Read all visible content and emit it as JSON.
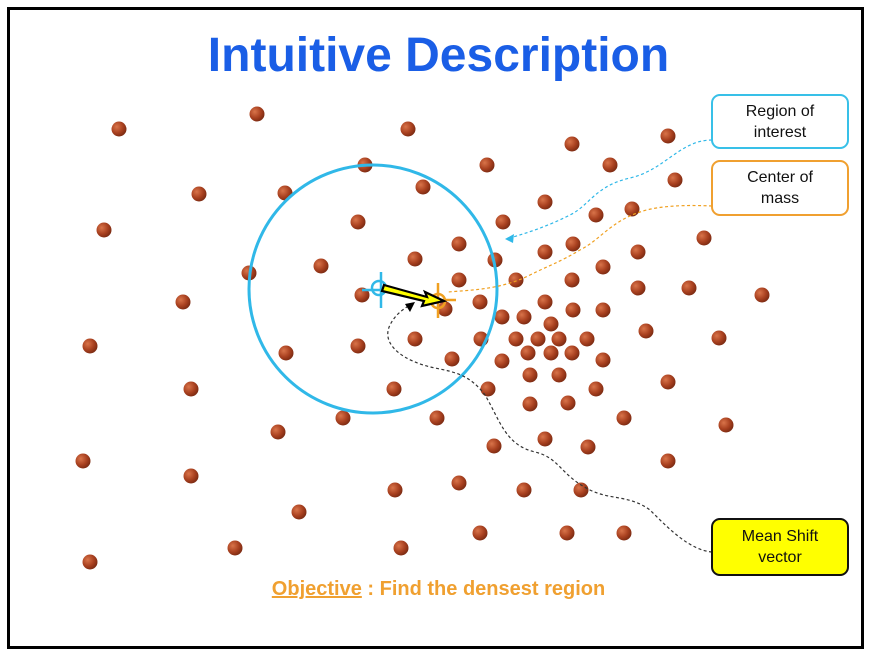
{
  "title": "Intuitive Description",
  "callouts": {
    "region_of_interest": [
      "Region of",
      "interest"
    ],
    "center_of_mass": [
      "Center of",
      "mass"
    ],
    "mean_shift_vector": [
      "Mean Shift",
      "vector"
    ]
  },
  "objective": {
    "label": "Objective",
    "separator": " : ",
    "text": "Find the densest region"
  },
  "colors": {
    "title": "#1a5ee6",
    "point": "#a8401f",
    "circle": "#30b8e8",
    "center_marker": "#f0a020",
    "roi_marker": "#30b8e8",
    "arrow_fill": "#ffff00",
    "arrow_stroke": "#000000",
    "objective": "#f0a030"
  },
  "icons": {
    "roi_center": "crosshair-icon",
    "center_of_mass": "crosshair-icon"
  }
}
